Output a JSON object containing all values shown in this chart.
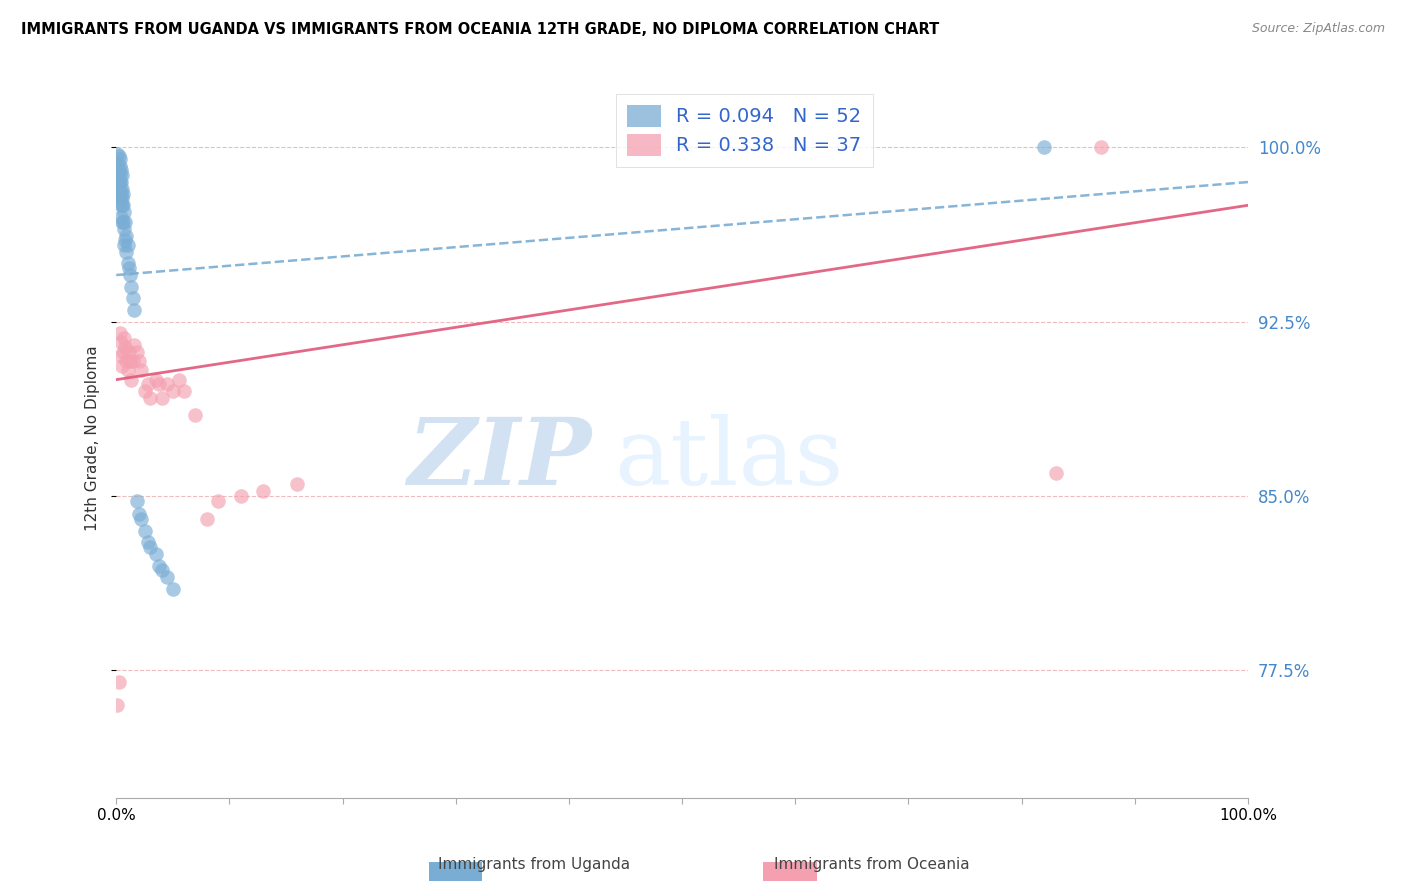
{
  "title": "IMMIGRANTS FROM UGANDA VS IMMIGRANTS FROM OCEANIA 12TH GRADE, NO DIPLOMA CORRELATION CHART",
  "source": "Source: ZipAtlas.com",
  "ylabel": "12th Grade, No Diploma",
  "xlim": [
    0.0,
    1.0
  ],
  "ylim": [
    0.72,
    1.03
  ],
  "yticks": [
    0.775,
    0.85,
    0.925,
    1.0
  ],
  "ytick_labels": [
    "77.5%",
    "85.0%",
    "92.5%",
    "100.0%"
  ],
  "xticks": [
    0.0,
    0.1,
    0.2,
    0.3,
    0.4,
    0.5,
    0.6,
    0.7,
    0.8,
    0.9,
    1.0
  ],
  "xtick_labels": [
    "0.0%",
    "",
    "",
    "",
    "",
    "",
    "",
    "",
    "",
    "",
    "100.0%"
  ],
  "uganda_color": "#7aadd4",
  "oceania_color": "#f4a0b0",
  "uganda_R": 0.094,
  "uganda_N": 52,
  "oceania_R": 0.338,
  "oceania_N": 37,
  "legend_label_uganda": "Immigrants from Uganda",
  "legend_label_oceania": "Immigrants from Oceania",
  "watermark_zip": "ZIP",
  "watermark_atlas": "atlas",
  "uganda_scatter_x": [
    0.001,
    0.001,
    0.001,
    0.002,
    0.002,
    0.002,
    0.002,
    0.003,
    0.003,
    0.003,
    0.003,
    0.003,
    0.003,
    0.004,
    0.004,
    0.004,
    0.004,
    0.004,
    0.005,
    0.005,
    0.005,
    0.005,
    0.005,
    0.006,
    0.006,
    0.006,
    0.007,
    0.007,
    0.007,
    0.008,
    0.008,
    0.009,
    0.009,
    0.01,
    0.01,
    0.011,
    0.012,
    0.013,
    0.015,
    0.016,
    0.018,
    0.02,
    0.022,
    0.025,
    0.028,
    0.03,
    0.035,
    0.038,
    0.04,
    0.045,
    0.05,
    0.82
  ],
  "uganda_scatter_y": [
    0.997,
    0.993,
    0.988,
    0.996,
    0.99,
    0.985,
    0.98,
    0.995,
    0.992,
    0.988,
    0.985,
    0.982,
    0.978,
    0.99,
    0.985,
    0.98,
    0.975,
    0.97,
    0.988,
    0.982,
    0.978,
    0.975,
    0.968,
    0.98,
    0.975,
    0.968,
    0.972,
    0.965,
    0.958,
    0.968,
    0.96,
    0.962,
    0.955,
    0.958,
    0.95,
    0.948,
    0.945,
    0.94,
    0.935,
    0.93,
    0.848,
    0.842,
    0.84,
    0.835,
    0.83,
    0.828,
    0.825,
    0.82,
    0.818,
    0.815,
    0.81,
    1.0
  ],
  "oceania_scatter_x": [
    0.001,
    0.002,
    0.003,
    0.004,
    0.004,
    0.005,
    0.006,
    0.007,
    0.008,
    0.009,
    0.01,
    0.011,
    0.012,
    0.013,
    0.015,
    0.016,
    0.018,
    0.02,
    0.022,
    0.025,
    0.028,
    0.03,
    0.035,
    0.038,
    0.04,
    0.045,
    0.05,
    0.055,
    0.06,
    0.07,
    0.08,
    0.09,
    0.11,
    0.13,
    0.16,
    0.83,
    0.87
  ],
  "oceania_scatter_y": [
    0.76,
    0.77,
    0.92,
    0.916,
    0.91,
    0.906,
    0.912,
    0.918,
    0.914,
    0.908,
    0.904,
    0.912,
    0.908,
    0.9,
    0.908,
    0.915,
    0.912,
    0.908,
    0.904,
    0.895,
    0.898,
    0.892,
    0.9,
    0.898,
    0.892,
    0.898,
    0.895,
    0.9,
    0.895,
    0.885,
    0.84,
    0.848,
    0.85,
    0.852,
    0.855,
    0.86,
    1.0
  ],
  "uganda_line_x": [
    0.0,
    1.0
  ],
  "uganda_line_y": [
    0.945,
    0.985
  ],
  "oceania_line_x": [
    0.0,
    1.0
  ],
  "oceania_line_y": [
    0.9,
    0.975
  ]
}
